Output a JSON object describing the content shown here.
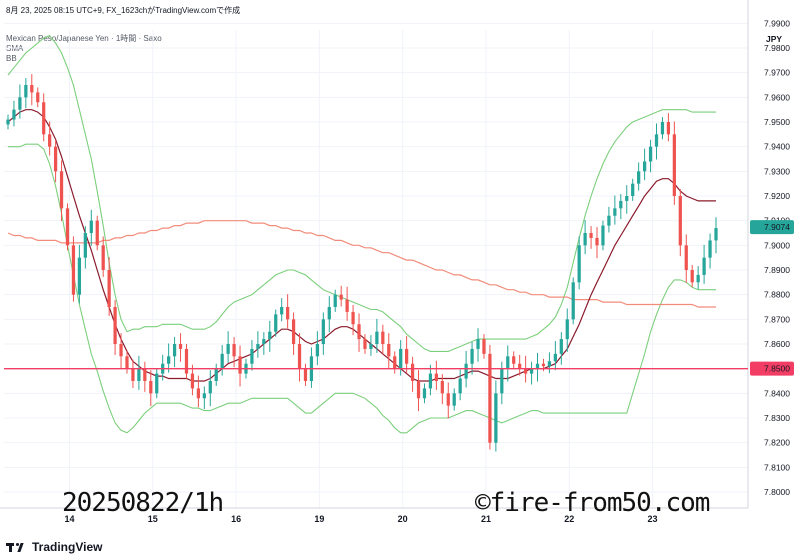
{
  "header": {
    "timestamp": "8月 23, 2025 08:15 UTC+9",
    "author": "FX_1623ch",
    "author_suffix": "がTradingView.comで作成",
    "symbol": "Mexican Peso/Japanese Yen · 1時間 · Saxo",
    "indicator1": "SMA",
    "indicator2": "BB"
  },
  "watermark_left": "20250822/1h",
  "watermark_right": "©fire-from50.com",
  "footer": {
    "brand": "TradingView"
  },
  "colors": {
    "up": "#26a69a",
    "down": "#ef5350",
    "bollinger": "#7ccf7c",
    "sma_short": "#8b1a2b",
    "sma_long": "#f28c7a",
    "hline": "#f23d65",
    "price_badge": "#26a69a"
  },
  "chart_data": {
    "type": "candlestick",
    "currency": "JPY",
    "ylim": [
      7.79,
      7.99
    ],
    "y_ticks": [
      "7.9900",
      "7.9800",
      "7.9700",
      "7.9600",
      "7.9500",
      "7.9400",
      "7.9300",
      "7.9200",
      "7.9100",
      "7.9000",
      "7.8900",
      "7.8800",
      "7.8700",
      "7.8600",
      "7.8400",
      "7.8300",
      "7.8200",
      "7.8100",
      "7.8000"
    ],
    "x_labels": [
      "14",
      "15",
      "16",
      "19",
      "20",
      "21",
      "22",
      "23"
    ],
    "current_price": "7.9074",
    "horizontal_line": {
      "value": 7.85,
      "label": "7.8500"
    },
    "grid": true,
    "close": [
      7.951,
      7.955,
      7.96,
      7.965,
      7.962,
      7.958,
      7.945,
      7.94,
      7.93,
      7.915,
      7.9,
      7.88,
      7.895,
      7.905,
      7.91,
      7.9,
      7.89,
      7.875,
      7.86,
      7.855,
      7.85,
      7.845,
      7.85,
      7.845,
      7.84,
      7.848,
      7.852,
      7.855,
      7.86,
      7.858,
      7.848,
      7.842,
      7.838,
      7.84,
      7.845,
      7.85,
      7.856,
      7.86,
      7.855,
      7.848,
      7.852,
      7.858,
      7.86,
      7.862,
      7.865,
      7.872,
      7.875,
      7.87,
      7.86,
      7.85,
      7.845,
      7.855,
      7.86,
      7.87,
      7.875,
      7.88,
      7.878,
      7.873,
      7.868,
      7.862,
      7.858,
      7.86,
      7.865,
      7.86,
      7.855,
      7.85,
      7.858,
      7.852,
      7.845,
      7.838,
      7.842,
      7.848,
      7.845,
      7.84,
      7.835,
      7.84,
      7.846,
      7.852,
      7.858,
      7.862,
      7.856,
      7.82,
      7.84,
      7.85,
      7.855,
      7.852,
      7.85,
      7.848,
      7.85,
      7.852,
      7.851,
      7.853,
      7.856,
      7.862,
      7.87,
      7.885,
      7.9,
      7.905,
      7.903,
      7.9,
      7.908,
      7.912,
      7.915,
      7.918,
      7.92,
      7.925,
      7.93,
      7.934,
      7.94,
      7.945,
      7.95,
      7.945,
      7.92,
      7.9,
      7.89,
      7.885,
      7.888,
      7.895,
      7.902,
      7.907
    ],
    "sma_short": [
      7.95,
      7.952,
      7.954,
      7.955,
      7.955,
      7.954,
      7.952,
      7.948,
      7.943,
      7.936,
      7.928,
      7.92,
      7.912,
      7.905,
      7.898,
      7.89,
      7.882,
      7.875,
      7.868,
      7.862,
      7.857,
      7.853,
      7.851,
      7.849,
      7.848,
      7.847,
      7.847,
      7.846,
      7.846,
      7.846,
      7.846,
      7.845,
      7.845,
      7.845,
      7.846,
      7.848,
      7.85,
      7.852,
      7.853,
      7.854,
      7.855,
      7.856,
      7.858,
      7.86,
      7.862,
      7.864,
      7.866,
      7.866,
      7.865,
      7.863,
      7.861,
      7.86,
      7.861,
      7.862,
      7.864,
      7.866,
      7.867,
      7.867,
      7.866,
      7.864,
      7.862,
      7.86,
      7.858,
      7.856,
      7.854,
      7.852,
      7.85,
      7.848,
      7.846,
      7.845,
      7.845,
      7.845,
      7.846,
      7.846,
      7.846,
      7.846,
      7.847,
      7.848,
      7.849,
      7.849,
      7.848,
      7.847,
      7.846,
      7.846,
      7.846,
      7.847,
      7.848,
      7.849,
      7.85,
      7.85,
      7.85,
      7.851,
      7.852,
      7.855,
      7.858,
      7.863,
      7.868,
      7.874,
      7.88,
      7.885,
      7.89,
      7.895,
      7.9,
      7.904,
      7.908,
      7.912,
      7.916,
      7.92,
      7.923,
      7.926,
      7.927,
      7.927,
      7.925,
      7.922,
      7.92,
      7.919,
      7.918,
      7.918,
      7.918,
      7.918
    ],
    "sma_long": [
      7.905,
      7.904,
      7.904,
      7.903,
      7.903,
      7.902,
      7.902,
      7.902,
      7.902,
      7.901,
      7.901,
      7.901,
      7.901,
      7.901,
      7.901,
      7.901,
      7.902,
      7.902,
      7.903,
      7.903,
      7.904,
      7.904,
      7.905,
      7.905,
      7.906,
      7.906,
      7.907,
      7.907,
      7.908,
      7.908,
      7.909,
      7.909,
      7.909,
      7.91,
      7.91,
      7.91,
      7.91,
      7.91,
      7.91,
      7.91,
      7.91,
      7.909,
      7.909,
      7.909,
      7.908,
      7.908,
      7.907,
      7.907,
      7.906,
      7.906,
      7.905,
      7.905,
      7.904,
      7.904,
      7.903,
      7.902,
      7.902,
      7.901,
      7.9,
      7.9,
      7.899,
      7.899,
      7.898,
      7.897,
      7.897,
      7.896,
      7.895,
      7.894,
      7.894,
      7.893,
      7.892,
      7.891,
      7.89,
      7.89,
      7.889,
      7.888,
      7.888,
      7.887,
      7.886,
      7.886,
      7.885,
      7.884,
      7.884,
      7.883,
      7.882,
      7.882,
      7.881,
      7.881,
      7.88,
      7.88,
      7.88,
      7.879,
      7.879,
      7.879,
      7.879,
      7.878,
      7.878,
      7.878,
      7.878,
      7.878,
      7.877,
      7.877,
      7.877,
      7.877,
      7.876,
      7.876,
      7.876,
      7.876,
      7.876,
      7.876,
      7.876,
      7.876,
      7.876,
      7.876,
      7.876,
      7.876,
      7.875,
      7.875,
      7.875,
      7.875
    ],
    "bb_upper": [
      7.969,
      7.972,
      7.975,
      7.978,
      7.98,
      7.982,
      7.984,
      7.985,
      7.982,
      7.978,
      7.972,
      7.965,
      7.955,
      7.945,
      7.935,
      7.922,
      7.908,
      7.893,
      7.88,
      7.87,
      7.865,
      7.866,
      7.866,
      7.867,
      7.867,
      7.867,
      7.868,
      7.868,
      7.868,
      7.868,
      7.867,
      7.866,
      7.866,
      7.866,
      7.867,
      7.869,
      7.872,
      7.875,
      7.877,
      7.878,
      7.879,
      7.88,
      7.882,
      7.884,
      7.886,
      7.888,
      7.889,
      7.89,
      7.89,
      7.889,
      7.888,
      7.886,
      7.884,
      7.882,
      7.881,
      7.88,
      7.879,
      7.878,
      7.877,
      7.876,
      7.875,
      7.874,
      7.874,
      7.873,
      7.871,
      7.869,
      7.867,
      7.864,
      7.862,
      7.86,
      7.858,
      7.857,
      7.857,
      7.857,
      7.857,
      7.858,
      7.859,
      7.86,
      7.861,
      7.862,
      7.862,
      7.862,
      7.862,
      7.862,
      7.862,
      7.862,
      7.862,
      7.862,
      7.863,
      7.864,
      7.866,
      7.868,
      7.871,
      7.876,
      7.883,
      7.893,
      7.903,
      7.912,
      7.92,
      7.927,
      7.933,
      7.938,
      7.942,
      7.945,
      7.948,
      7.95,
      7.951,
      7.952,
      7.953,
      7.954,
      7.955,
      7.955,
      7.955,
      7.955,
      7.955,
      7.954,
      7.954,
      7.954,
      7.954,
      7.954
    ],
    "bb_lower": [
      7.94,
      7.94,
      7.94,
      7.941,
      7.941,
      7.941,
      7.939,
      7.933,
      7.924,
      7.913,
      7.9,
      7.888,
      7.876,
      7.866,
      7.856,
      7.849,
      7.841,
      7.834,
      7.828,
      7.825,
      7.824,
      7.826,
      7.829,
      7.832,
      7.834,
      7.836,
      7.836,
      7.836,
      7.836,
      7.836,
      7.835,
      7.834,
      7.834,
      7.833,
      7.833,
      7.834,
      7.835,
      7.836,
      7.836,
      7.836,
      7.837,
      7.838,
      7.838,
      7.838,
      7.838,
      7.838,
      7.838,
      7.838,
      7.836,
      7.834,
      7.832,
      7.832,
      7.834,
      7.836,
      7.838,
      7.84,
      7.84,
      7.84,
      7.84,
      7.839,
      7.838,
      7.836,
      7.834,
      7.831,
      7.829,
      7.826,
      7.824,
      7.824,
      7.826,
      7.828,
      7.829,
      7.83,
      7.83,
      7.83,
      7.83,
      7.831,
      7.832,
      7.833,
      7.833,
      7.832,
      7.831,
      7.83,
      7.829,
      7.828,
      7.829,
      7.83,
      7.831,
      7.832,
      7.833,
      7.833,
      7.832,
      7.832,
      7.832,
      7.832,
      7.832,
      7.832,
      7.832,
      7.832,
      7.832,
      7.832,
      7.832,
      7.832,
      7.832,
      7.832,
      7.832,
      7.84,
      7.848,
      7.856,
      7.865,
      7.872,
      7.878,
      7.883,
      7.886,
      7.886,
      7.885,
      7.883,
      7.882,
      7.882,
      7.882,
      7.882
    ]
  }
}
